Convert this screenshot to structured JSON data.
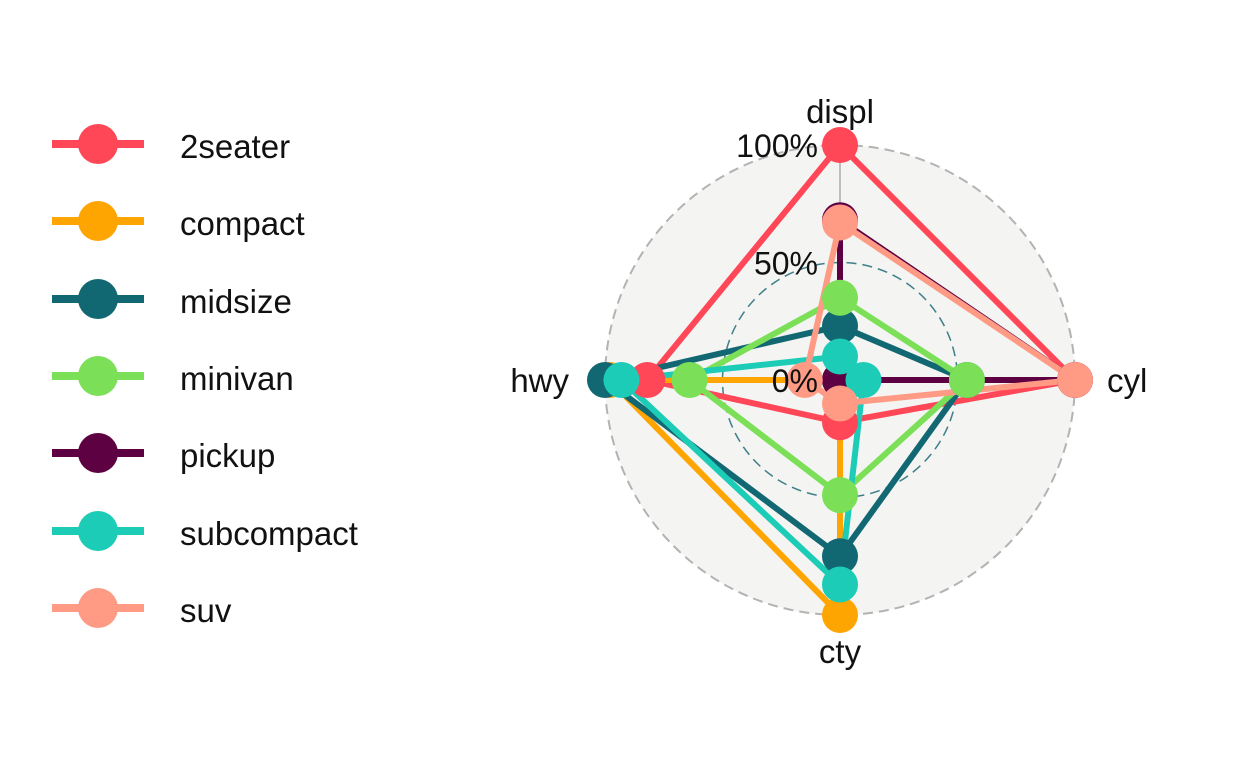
{
  "chart_data": {
    "type": "radar",
    "axes": [
      "displ",
      "cyl",
      "cty",
      "hwy"
    ],
    "grid_labels": [
      "0%",
      "50%",
      "100%"
    ],
    "legend_position": "left",
    "series": [
      {
        "name": "2seater",
        "color": "#FF4757",
        "values": [
          1.0,
          1.0,
          0.18,
          0.82
        ]
      },
      {
        "name": "compact",
        "color": "#FFA502",
        "values": [
          0.0,
          0.0,
          1.0,
          0.98
        ]
      },
      {
        "name": "midsize",
        "color": "#126872",
        "values": [
          0.23,
          0.54,
          0.75,
          1.0
        ]
      },
      {
        "name": "minivan",
        "color": "#7BE057",
        "values": [
          0.35,
          0.54,
          0.49,
          0.64
        ]
      },
      {
        "name": "pickup",
        "color": "#5E0142",
        "values": [
          0.68,
          1.0,
          0.0,
          0.0
        ]
      },
      {
        "name": "subcompact",
        "color": "#1CCCB7",
        "values": [
          0.1,
          0.1,
          0.87,
          0.93
        ]
      },
      {
        "name": "suv",
        "color": "#FF9B85",
        "values": [
          0.67,
          1.0,
          0.1,
          0.15
        ]
      }
    ]
  }
}
